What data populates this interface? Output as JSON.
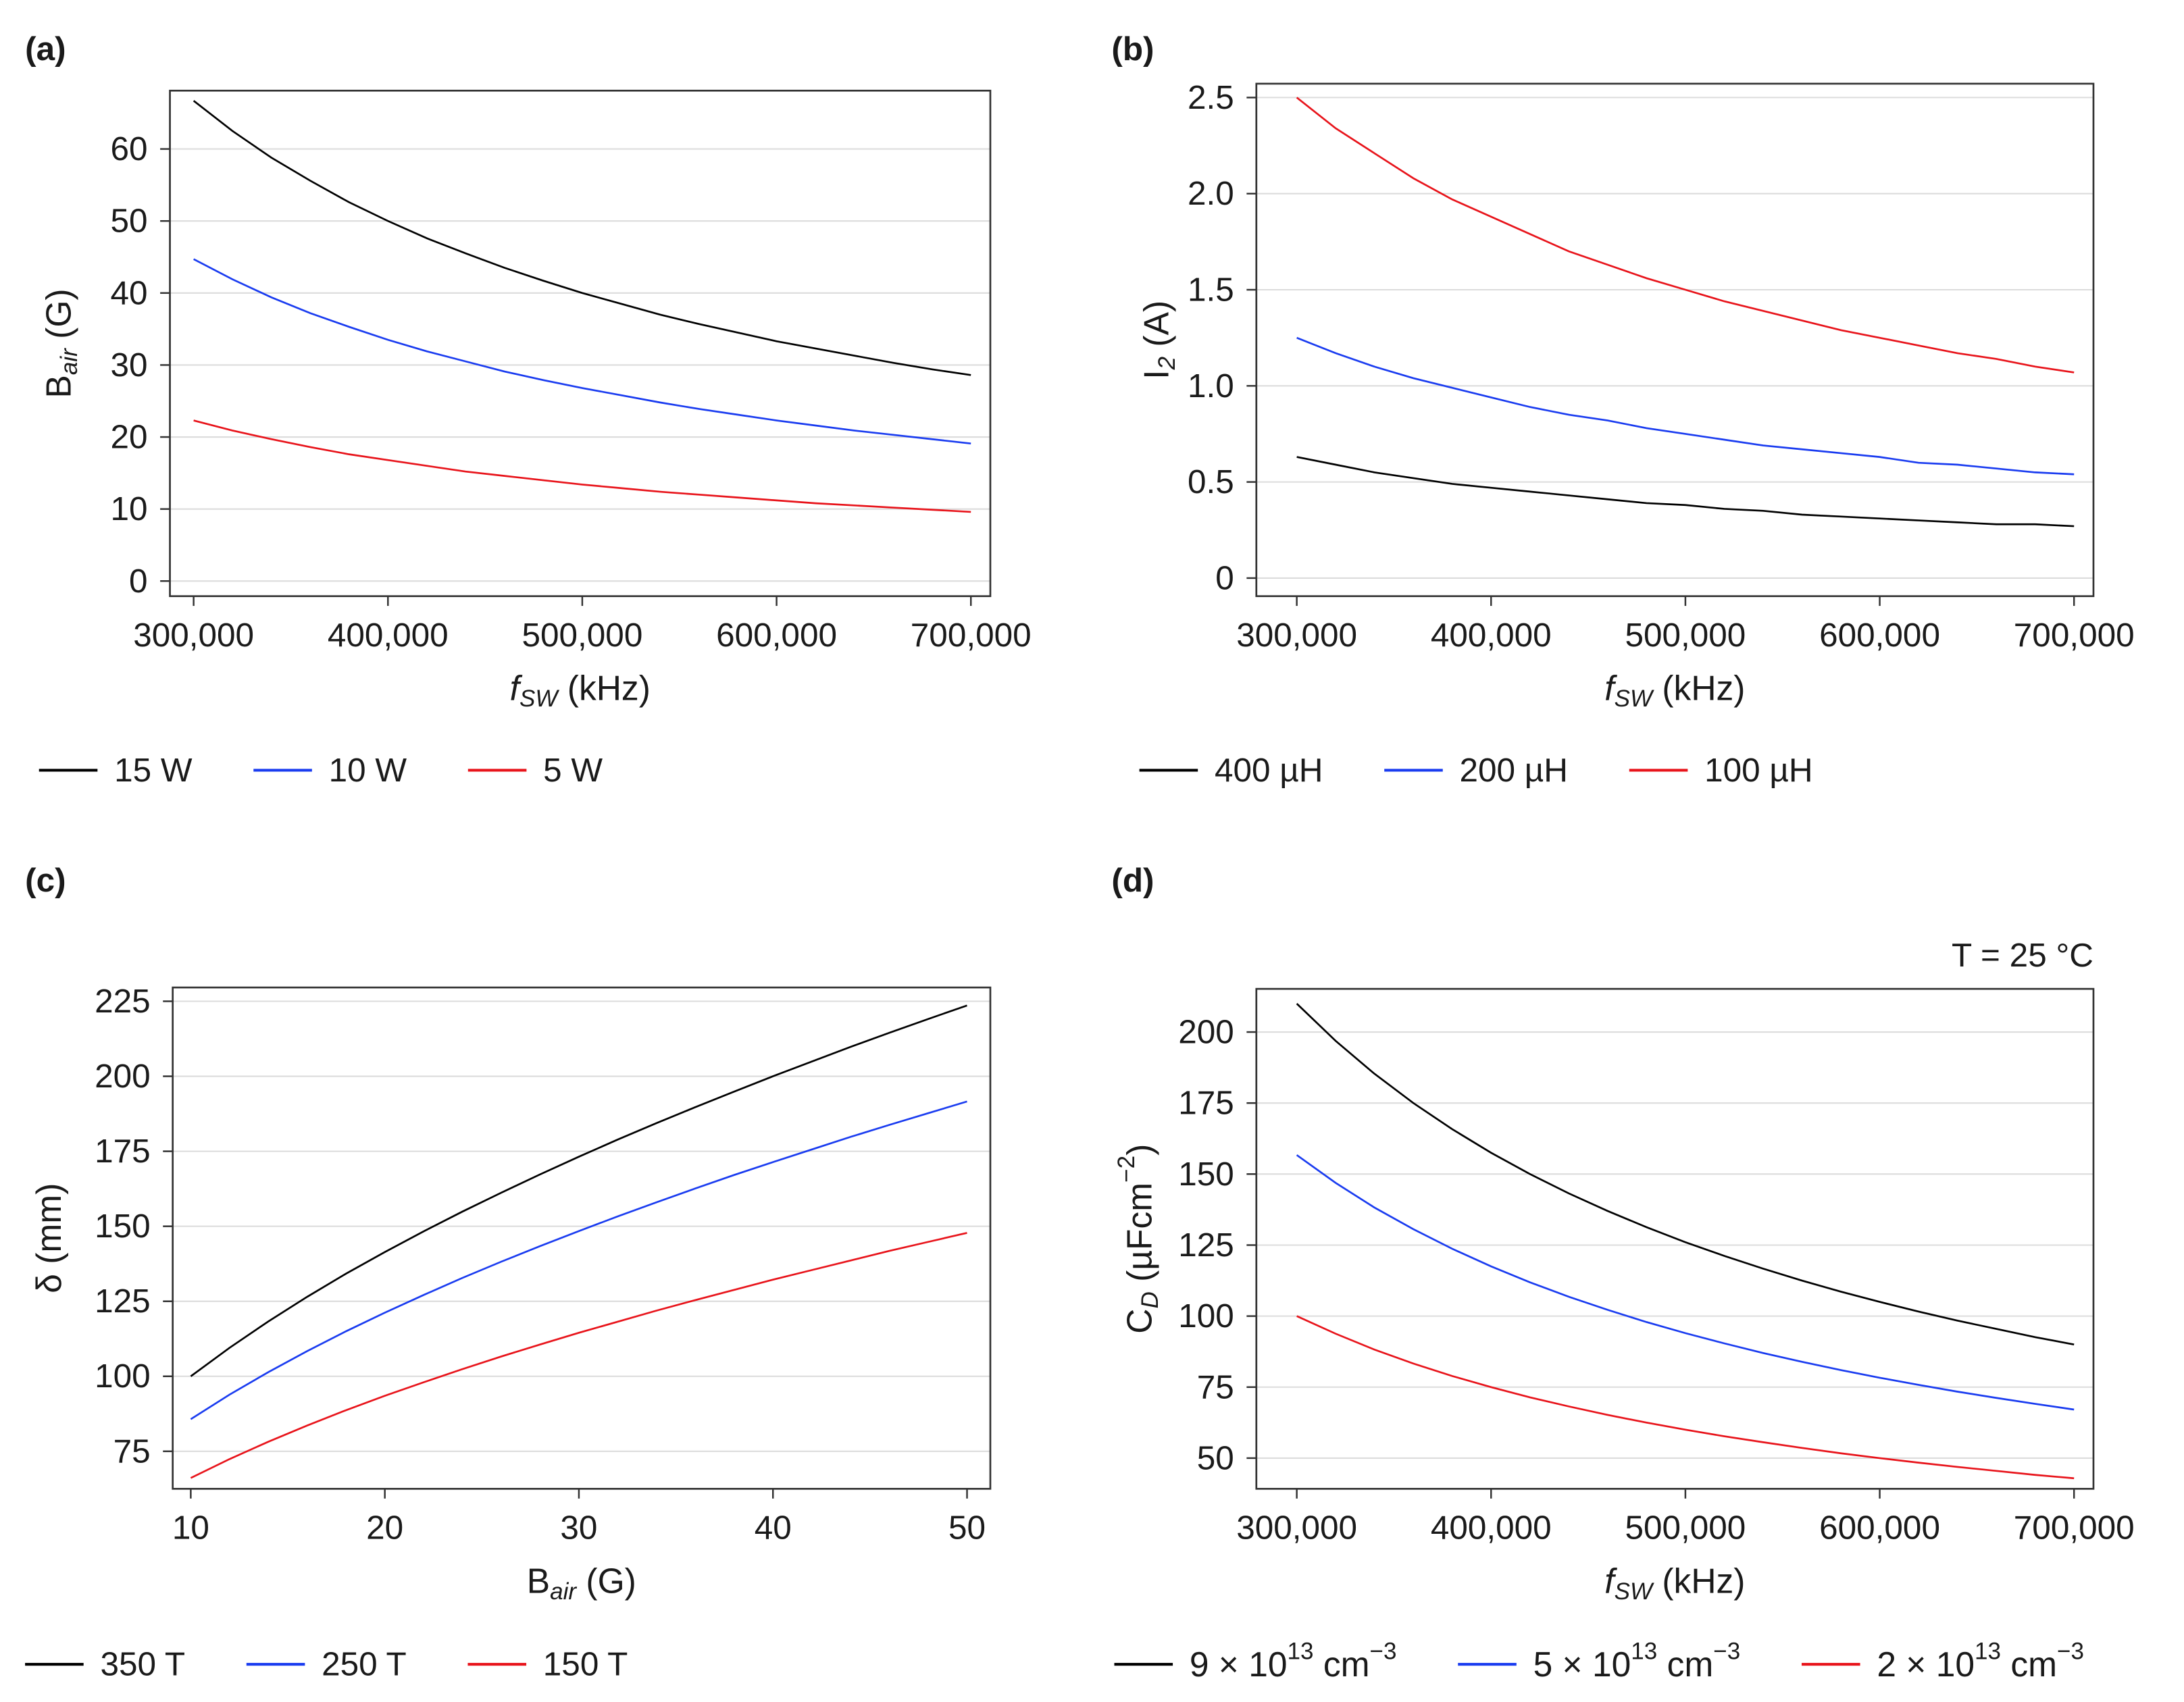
{
  "chart_data": [
    {
      "type": "line",
      "panel": "(a)",
      "x_label": [
        {
          "italic": "f"
        },
        {
          "sub": "SW"
        },
        " (kHz)"
      ],
      "y_label": [
        "B",
        {
          "sub": "air"
        },
        " (G)"
      ],
      "x": [
        300000,
        320000,
        340000,
        360000,
        380000,
        400000,
        420000,
        440000,
        460000,
        480000,
        500000,
        520000,
        540000,
        560000,
        580000,
        600000,
        620000,
        640000,
        660000,
        680000,
        700000
      ],
      "series": [
        {
          "name": "15 W",
          "color": "#000000",
          "values": [
            66.7,
            62.5,
            58.8,
            55.6,
            52.6,
            50.0,
            47.6,
            45.5,
            43.5,
            41.7,
            40.0,
            38.5,
            37.0,
            35.7,
            34.5,
            33.3,
            32.3,
            31.3,
            30.3,
            29.4,
            28.6
          ]
        },
        {
          "name": "10 W",
          "color": "#1a3cf0",
          "values": [
            44.7,
            41.9,
            39.4,
            37.2,
            35.3,
            33.5,
            31.9,
            30.5,
            29.1,
            27.9,
            26.8,
            25.8,
            24.8,
            23.9,
            23.1,
            22.3,
            21.6,
            20.9,
            20.3,
            19.7,
            19.1
          ]
        },
        {
          "name": "5 W",
          "color": "#e8141b",
          "values": [
            22.3,
            20.9,
            19.7,
            18.6,
            17.6,
            16.8,
            16.0,
            15.2,
            14.6,
            14.0,
            13.4,
            12.9,
            12.4,
            12.0,
            11.6,
            11.2,
            10.8,
            10.5,
            10.2,
            9.9,
            9.6
          ]
        }
      ],
      "xlim": [
        287800,
        710000
      ],
      "xticks": [
        {
          "value": 300000,
          "label": "300,000"
        },
        {
          "value": 400000,
          "label": "400,000"
        },
        {
          "value": 500000,
          "label": "500,000"
        },
        {
          "value": 600000,
          "label": "600,000"
        },
        {
          "value": 700000,
          "label": "700,000"
        }
      ],
      "ylim": [
        -2.1,
        68.1
      ],
      "yticks": [
        0,
        10,
        20,
        30,
        40,
        50,
        60
      ],
      "grid": true
    },
    {
      "type": "line",
      "panel": "(b)",
      "x_label": [
        {
          "italic": "f"
        },
        {
          "sub": "SW"
        },
        " (kHz)"
      ],
      "y_label": [
        "I",
        {
          "sub": "2"
        },
        " (A)"
      ],
      "x": [
        300000,
        320000,
        340000,
        360000,
        380000,
        400000,
        420000,
        440000,
        460000,
        480000,
        500000,
        520000,
        540000,
        560000,
        580000,
        600000,
        620000,
        640000,
        660000,
        680000,
        700000
      ],
      "series": [
        {
          "name": "400 µH",
          "color": "#000000",
          "values": [
            0.63,
            0.59,
            0.55,
            0.52,
            0.49,
            0.47,
            0.45,
            0.43,
            0.41,
            0.39,
            0.38,
            0.36,
            0.35,
            0.33,
            0.32,
            0.31,
            0.3,
            0.29,
            0.28,
            0.28,
            0.27
          ]
        },
        {
          "name": "200 µH",
          "color": "#1a3cf0",
          "values": [
            1.25,
            1.17,
            1.1,
            1.04,
            0.99,
            0.94,
            0.89,
            0.85,
            0.82,
            0.78,
            0.75,
            0.72,
            0.69,
            0.67,
            0.65,
            0.63,
            0.6,
            0.59,
            0.57,
            0.55,
            0.54
          ]
        },
        {
          "name": "100 µH",
          "color": "#e8141b",
          "values": [
            2.5,
            2.34,
            2.21,
            2.08,
            1.97,
            1.88,
            1.79,
            1.7,
            1.63,
            1.56,
            1.5,
            1.44,
            1.39,
            1.34,
            1.29,
            1.25,
            1.21,
            1.17,
            1.14,
            1.1,
            1.07
          ]
        }
      ],
      "xlim": [
        279200,
        710000
      ],
      "xticks": [
        {
          "value": 300000,
          "label": "300,000"
        },
        {
          "value": 400000,
          "label": "400,000"
        },
        {
          "value": 500000,
          "label": "500,000"
        },
        {
          "value": 600000,
          "label": "600,000"
        },
        {
          "value": 700000,
          "label": "700,000"
        }
      ],
      "ylim": [
        -0.094,
        2.572
      ],
      "yticks": [
        0,
        0.5,
        {
          "value": 1,
          "label": "1.0"
        },
        1.5,
        {
          "value": 2,
          "label": "2.0"
        },
        2.5
      ],
      "grid": true
    },
    {
      "type": "line",
      "panel": "(c)",
      "x_label": [
        "B",
        {
          "sub": "air"
        },
        " (G)"
      ],
      "y_label": [
        "δ (mm)"
      ],
      "x": [
        10,
        12,
        14,
        16,
        18,
        20,
        22,
        24,
        26,
        28,
        30,
        32,
        34,
        36,
        38,
        40,
        42,
        44,
        46,
        48,
        50
      ],
      "series": [
        {
          "name": "350 T",
          "color": "#000000",
          "values": [
            100,
            109.5,
            118.3,
            126.5,
            134.2,
            141.4,
            148.3,
            154.9,
            161.2,
            167.3,
            173.2,
            178.9,
            184.4,
            189.7,
            194.9,
            200,
            204.9,
            209.8,
            214.5,
            219.1,
            223.6
          ]
        },
        {
          "name": "250 T",
          "color": "#1a3cf0",
          "values": [
            85.7,
            93.9,
            101.4,
            108.4,
            115.0,
            121.2,
            127.1,
            132.8,
            138.2,
            143.4,
            148.4,
            153.3,
            158.0,
            162.6,
            167.1,
            171.4,
            175.6,
            179.8,
            183.8,
            187.7,
            191.6
          ]
        },
        {
          "name": "150 T",
          "color": "#e8141b",
          "values": [
            66.1,
            72.4,
            78.2,
            83.6,
            88.7,
            93.5,
            98.0,
            102.4,
            106.6,
            110.6,
            114.5,
            118.2,
            121.9,
            125.4,
            128.8,
            132.2,
            135.4,
            138.6,
            141.8,
            144.8,
            147.8
          ]
        }
      ],
      "xlim": [
        9.07,
        51.2
      ],
      "xticks": [
        10,
        20,
        30,
        40,
        50
      ],
      "ylim": [
        62.5,
        229.6
      ],
      "yticks": [
        75,
        100,
        125,
        150,
        175,
        200,
        225
      ],
      "grid": true
    },
    {
      "type": "line",
      "panel": "(d)",
      "annotation": "T = 25 °C",
      "x_label": [
        {
          "italic": "f"
        },
        {
          "sub": "SW"
        },
        " (kHz)"
      ],
      "y_label": [
        "C",
        {
          "sub": "D"
        },
        " (µFcm",
        {
          "sup": "−2"
        },
        ")"
      ],
      "x": [
        300000,
        320000,
        340000,
        360000,
        380000,
        400000,
        420000,
        440000,
        460000,
        480000,
        500000,
        520000,
        540000,
        560000,
        580000,
        600000,
        620000,
        640000,
        660000,
        680000,
        700000
      ],
      "series": [
        {
          "name": [
            "9 × 10",
            {
              "sup": "13"
            },
            " cm",
            {
              "sup": "−3"
            }
          ],
          "color": "#000000",
          "values": [
            210,
            196.9,
            185.3,
            175,
            165.8,
            157.5,
            150,
            143.2,
            137,
            131.3,
            126,
            121.2,
            116.7,
            112.5,
            108.6,
            105,
            101.6,
            98.4,
            95.5,
            92.6,
            90
          ]
        },
        {
          "name": [
            "5 × 10",
            {
              "sup": "13"
            },
            " cm",
            {
              "sup": "−3"
            }
          ],
          "color": "#1a3cf0",
          "values": [
            156.7,
            146.9,
            138.2,
            130.6,
            123.7,
            117.5,
            111.9,
            106.8,
            102.2,
            97.9,
            94.0,
            90.4,
            87.0,
            83.9,
            81.0,
            78.3,
            75.8,
            73.4,
            71.2,
            69.1,
            67.1
          ]
        },
        {
          "name": [
            "2 × 10",
            {
              "sup": "13"
            },
            " cm",
            {
              "sup": "−3"
            }
          ],
          "color": "#e8141b",
          "values": [
            100,
            93.8,
            88.2,
            83.3,
            78.9,
            75,
            71.4,
            68.2,
            65.2,
            62.5,
            60,
            57.7,
            55.6,
            53.6,
            51.7,
            50,
            48.4,
            46.9,
            45.5,
            44.1,
            42.9
          ]
        }
      ],
      "xlim": [
        279200,
        710000
      ],
      "xticks": [
        {
          "value": 300000,
          "label": "300,000"
        },
        {
          "value": 400000,
          "label": "400,000"
        },
        {
          "value": 500000,
          "label": "500,000"
        },
        {
          "value": 600000,
          "label": "600,000"
        },
        {
          "value": 700000,
          "label": "700,000"
        }
      ],
      "ylim": [
        39.2,
        215.2
      ],
      "yticks": [
        50,
        75,
        100,
        125,
        150,
        175,
        200
      ],
      "grid": true
    }
  ]
}
